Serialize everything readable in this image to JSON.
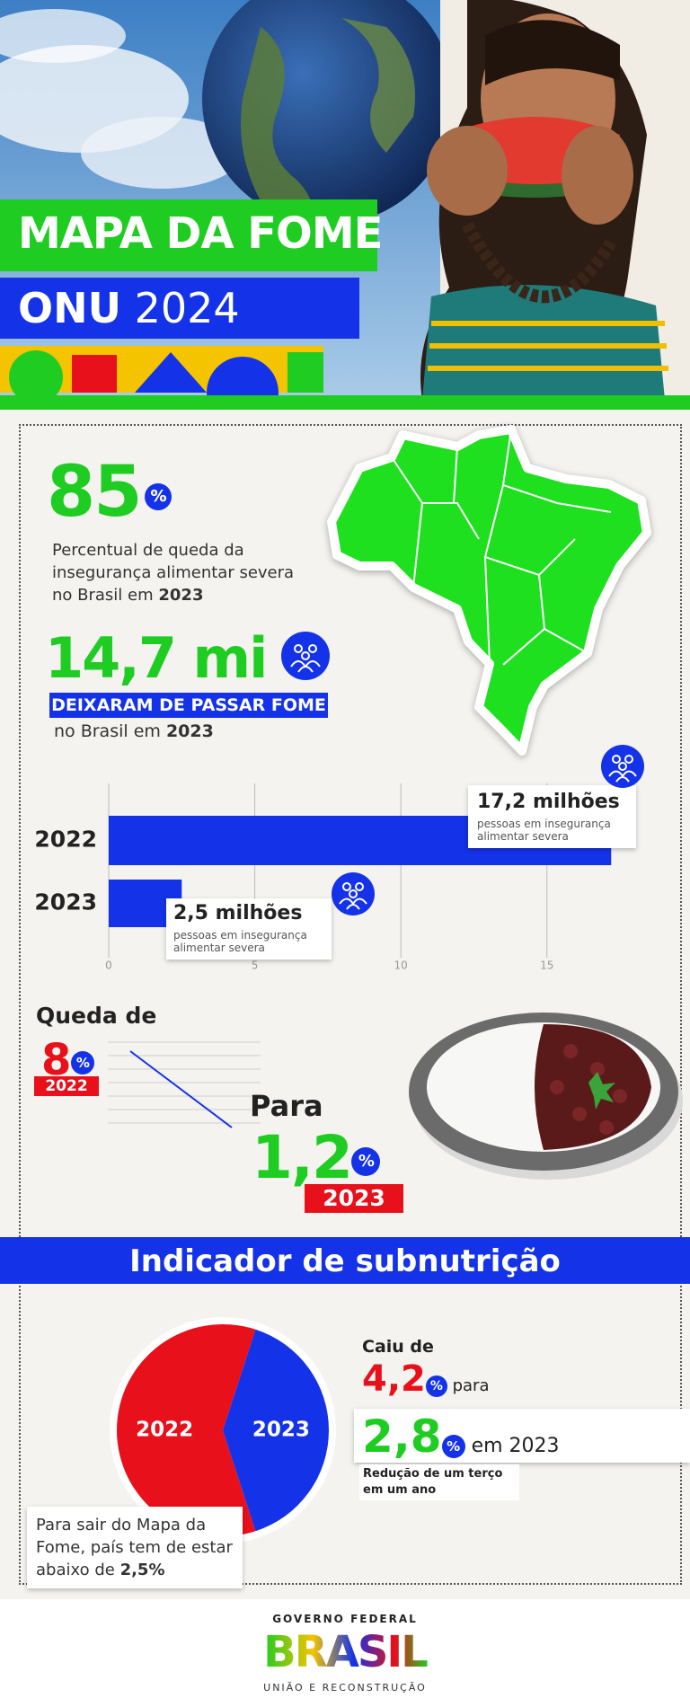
{
  "header": {
    "title_line1": "MAPA DA FOME",
    "title_line2a": "ONU",
    "title_line2b": "2024"
  },
  "percent_sign": "%",
  "stat_drop": {
    "value": "85",
    "description": "Percentual de queda da insegurança alimentar severa no Brasil em",
    "year": "2023"
  },
  "stat_people": {
    "value": "14,7 mi",
    "banner": "DEIXARAM DE PASSAR FOME",
    "description": "no Brasil em",
    "year": "2023"
  },
  "hunger_chart": {
    "type": "bar",
    "orientation": "horizontal",
    "categories": [
      "2022",
      "2023"
    ],
    "values": [
      17.2,
      2.5
    ],
    "value_labels": [
      "17,2 milhões",
      "2,5 milhões"
    ],
    "caption": "pessoas em insegurança alimentar severa",
    "color": "#1432e8",
    "xlim": [
      0,
      17.5
    ],
    "xticks": [
      0,
      5,
      10,
      15
    ],
    "grid": true
  },
  "rate_drop": {
    "title": "Queda de",
    "from_value": "8",
    "from_year": "2022",
    "to_label": "Para",
    "to_value": "1,2",
    "to_year": "2023"
  },
  "subnutrition": {
    "title": "Indicador de subnutrição",
    "type": "pie",
    "categories": [
      "2022",
      "2023"
    ],
    "values": [
      4.2,
      2.8
    ],
    "value_labels": [
      "4,2",
      "2,8"
    ],
    "colors": [
      "#e8101a",
      "#1432e8"
    ],
    "fell_from": "Caiu de",
    "to_word": "para",
    "in_year": "em 2023",
    "reduction": "Redução de um terço em um ano",
    "note": "Para sair do Mapa da Fome, país tem de estar abaixo de",
    "note_value": "2,5%"
  },
  "footer": {
    "government": "GOVERNO FEDERAL",
    "brand": "BRASIL",
    "motto": "UNIÃO E RECONSTRUÇÃO"
  }
}
